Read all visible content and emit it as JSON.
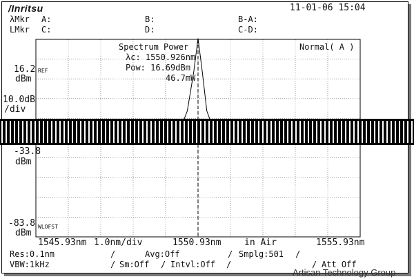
{
  "header": {
    "brand": "/Inritsu",
    "datetime": "11-01-06 15:04"
  },
  "markers": {
    "lambda_row": {
      "label": "λMkr",
      "a": "A:",
      "b": "B:",
      "ba": "B-A:"
    },
    "level_row": {
      "label": "LMkr",
      "c": "C:",
      "d": "D:",
      "cd": "C-D:"
    }
  },
  "panel": {
    "title": "Spectrum Power",
    "center_wl": "λc: 1550.926nm",
    "power_dbm": "Pow: 16.69dBm",
    "power_mw": "46.7mW",
    "mode": "Normal( A )"
  },
  "y_axis": {
    "ref_value": "16.2",
    "ref_unit": "dBm",
    "ref_tag": "REF",
    "scale_value": "10.0dB",
    "scale_unit": "/div",
    "mid_value": "-33.8",
    "mid_unit": "dBm",
    "bottom_value": "-83.8",
    "bottom_unit": "dBm",
    "bottom_tag": "WLOFST"
  },
  "x_axis": {
    "start": "1545.93nm",
    "span": "1.0nm/div",
    "center": "1550.93nm",
    "medium": "in Air",
    "stop": "1555.93nm"
  },
  "settings": {
    "res": "Res:0.1nm",
    "avg": "Avg:Off",
    "smplg": "Smplg:501",
    "vbw": "VBW:1kHz",
    "sm": "Sm:Off",
    "intvl": "Intvl:Off",
    "att": "Att Off"
  },
  "watermark": "Artisan Technology Group",
  "chart_data": {
    "type": "line",
    "x_unit": "nm",
    "y_unit": "dBm",
    "xlim": [
      1545.93,
      1555.93
    ],
    "ylim": [
      -83.8,
      16.2
    ],
    "x": [
      1545.93,
      1546.5,
      1547.0,
      1547.5,
      1548.0,
      1548.5,
      1549.0,
      1549.5,
      1550.0,
      1550.4,
      1550.6,
      1550.8,
      1550.93,
      1551.06,
      1551.2,
      1551.4,
      1551.6,
      1551.8,
      1551.93,
      1552.1,
      1552.5,
      1552.93,
      1553.1,
      1553.5,
      1553.93,
      1554.1,
      1554.5,
      1554.93,
      1555.1,
      1555.5,
      1555.93
    ],
    "y": [
      -35.0,
      -34.9,
      -34.7,
      -34.5,
      -34.3,
      -34.0,
      -33.6,
      -33.0,
      -31.5,
      -28.5,
      -20.0,
      0.0,
      16.69,
      0.0,
      -20.0,
      -29.0,
      -30.5,
      -31.5,
      -27.0,
      -31.8,
      -33.0,
      -30.5,
      -32.5,
      -33.2,
      -31.5,
      -33.0,
      -33.5,
      -32.0,
      -33.3,
      -33.7,
      -34.0
    ],
    "grid": true,
    "center_marker_x": 1550.93
  }
}
